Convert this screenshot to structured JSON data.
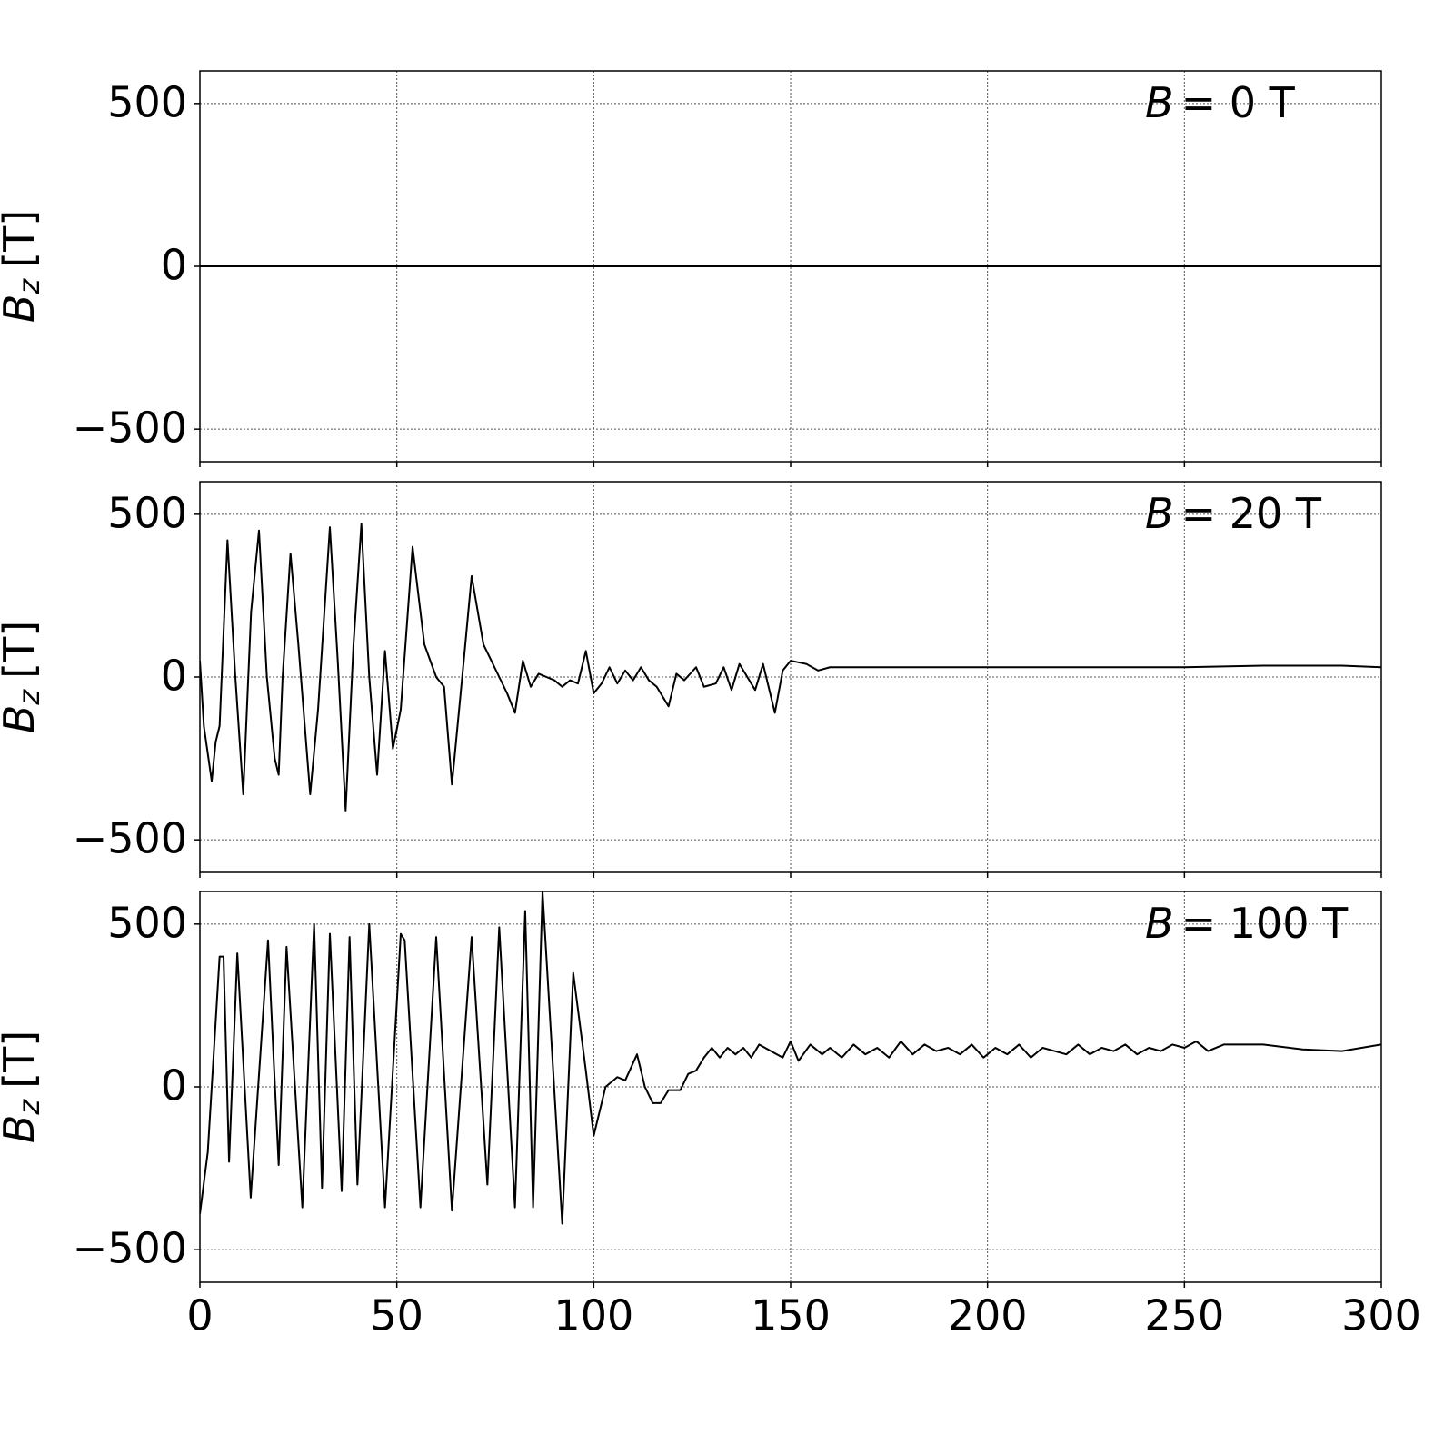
{
  "chart_data": [
    {
      "type": "line",
      "annotation": {
        "symbol": "B",
        "text": "= 0 T"
      },
      "ylabel": {
        "symbol": "B",
        "subscript": "z",
        "unit": "[T]"
      },
      "xlim": [
        0,
        300
      ],
      "xticks": [
        0,
        50,
        100,
        150,
        200,
        250,
        300
      ],
      "show_xtick_labels": false,
      "ylim": [
        -600,
        600
      ],
      "yticks": [
        -500,
        0,
        500
      ],
      "grid": true,
      "color": "#000000",
      "x": [
        0,
        300
      ],
      "values": [
        0,
        0
      ]
    },
    {
      "type": "line",
      "annotation": {
        "symbol": "B",
        "text": "= 20 T"
      },
      "ylabel": {
        "symbol": "B",
        "subscript": "z",
        "unit": "[T]"
      },
      "xlim": [
        0,
        300
      ],
      "xticks": [
        0,
        50,
        100,
        150,
        200,
        250,
        300
      ],
      "show_xtick_labels": false,
      "ylim": [
        -600,
        600
      ],
      "yticks": [
        -500,
        0,
        500
      ],
      "grid": true,
      "color": "#000000",
      "x": [
        0,
        1,
        3,
        4,
        5,
        7,
        9,
        11,
        13,
        15,
        17,
        19,
        20,
        21,
        23,
        25,
        28,
        30,
        33,
        35,
        37,
        39,
        41,
        43,
        45,
        47,
        49,
        51,
        54,
        57,
        60,
        62,
        64,
        67,
        69,
        72,
        74,
        76,
        78,
        80,
        82,
        84,
        86,
        88,
        90,
        92,
        94,
        96,
        98,
        100,
        102,
        104,
        106,
        108,
        110,
        112,
        114,
        116,
        119,
        121,
        123,
        126,
        128,
        131,
        133,
        135,
        137,
        139,
        141,
        143,
        146,
        148,
        150,
        154,
        157,
        160,
        170,
        200,
        250,
        270,
        290,
        300
      ],
      "values": [
        50,
        -150,
        -320,
        -200,
        -150,
        420,
        0,
        -360,
        200,
        450,
        0,
        -250,
        -300,
        0,
        380,
        100,
        -360,
        -100,
        460,
        50,
        -410,
        100,
        470,
        0,
        -300,
        80,
        -220,
        -100,
        400,
        100,
        0,
        -30,
        -330,
        50,
        310,
        100,
        50,
        0,
        -50,
        -110,
        50,
        -30,
        10,
        0,
        -10,
        -30,
        -10,
        -20,
        80,
        -50,
        -20,
        30,
        -20,
        20,
        -10,
        30,
        -10,
        -30,
        -90,
        10,
        -10,
        30,
        -30,
        -20,
        30,
        -40,
        40,
        0,
        -40,
        40,
        -110,
        20,
        50,
        40,
        20,
        30,
        30,
        30,
        30,
        35,
        35,
        30
      ]
    },
    {
      "type": "line",
      "annotation": {
        "symbol": "B",
        "text": "= 100 T"
      },
      "ylabel": {
        "symbol": "B",
        "subscript": "z",
        "unit": "[T]"
      },
      "xlim": [
        0,
        300
      ],
      "xticks": [
        0,
        50,
        100,
        150,
        200,
        250,
        300
      ],
      "show_xtick_labels": true,
      "ylim": [
        -600,
        600
      ],
      "yticks": [
        -500,
        0,
        500
      ],
      "grid": true,
      "color": "#000000",
      "x": [
        0,
        2,
        5,
        6,
        7.4,
        9.5,
        12.9,
        17.3,
        20,
        22,
        26,
        29,
        31,
        33,
        36,
        38,
        40,
        43,
        47,
        51,
        52,
        56,
        60,
        64,
        69,
        73,
        76,
        80,
        82.6,
        84.6,
        87,
        92,
        94.8,
        98,
        100,
        103,
        106,
        108,
        111,
        113,
        115,
        117,
        119,
        122,
        124,
        126,
        128,
        130,
        132,
        134,
        136,
        138,
        140,
        142,
        145,
        148,
        150,
        152,
        155,
        158,
        160,
        163,
        166,
        169,
        172,
        175,
        178,
        181,
        184,
        187,
        190,
        193,
        196,
        199,
        202,
        205,
        208,
        211,
        214,
        217,
        220,
        223,
        226,
        229,
        232,
        235,
        238,
        241,
        244,
        247,
        250,
        253,
        256,
        260,
        270,
        280,
        290,
        300
      ],
      "values": [
        -390,
        -200,
        400,
        400,
        -230,
        410,
        -340,
        450,
        -240,
        430,
        -370,
        500,
        -310,
        470,
        -320,
        460,
        -300,
        500,
        -370,
        470,
        450,
        -370,
        460,
        -380,
        460,
        -300,
        490,
        -370,
        540,
        -370,
        600,
        -420,
        350,
        50,
        -150,
        0,
        30,
        20,
        100,
        0,
        -50,
        -50,
        -10,
        -10,
        40,
        50,
        90,
        120,
        90,
        120,
        100,
        120,
        90,
        130,
        110,
        90,
        140,
        80,
        130,
        100,
        120,
        90,
        130,
        100,
        120,
        90,
        140,
        100,
        130,
        110,
        120,
        100,
        130,
        90,
        120,
        100,
        130,
        90,
        120,
        110,
        100,
        130,
        100,
        120,
        110,
        130,
        100,
        120,
        110,
        130,
        120,
        140,
        110,
        130,
        130,
        115,
        110,
        130
      ]
    }
  ]
}
